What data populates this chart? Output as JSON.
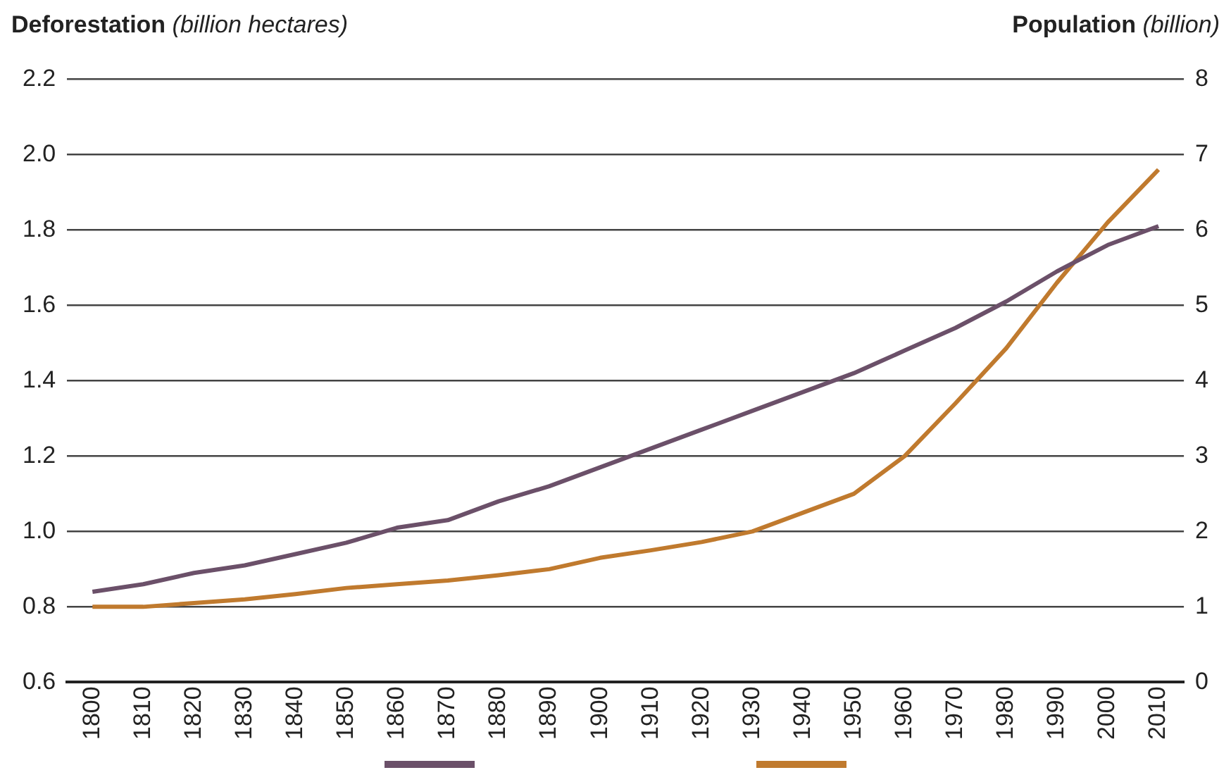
{
  "chart_data": {
    "type": "line",
    "ylabel": "Deforestation (billion hectares)",
    "y2label": "Population (billion)",
    "categories": [
      "1800",
      "1810",
      "1820",
      "1830",
      "1840",
      "1850",
      "1860",
      "1870",
      "1880",
      "1890",
      "1900",
      "1910",
      "1920",
      "1930",
      "1940",
      "1950",
      "1960",
      "1970",
      "1980",
      "1990",
      "2000",
      "2010"
    ],
    "series": [
      {
        "color": "#6b5069",
        "values": [
          0.84,
          0.86,
          0.89,
          0.91,
          0.94,
          0.97,
          1.01,
          1.03,
          1.08,
          1.12,
          1.17,
          1.22,
          1.27,
          1.32,
          1.37,
          1.42,
          1.48,
          1.54,
          1.61,
          1.69,
          1.76,
          1.81
        ]
      },
      {
        "color": "#c07a2e",
        "axis": "y2",
        "values": [
          1.0,
          1.0,
          1.05,
          1.1,
          1.17,
          1.25,
          1.3,
          1.35,
          1.42,
          1.5,
          1.65,
          1.75,
          1.86,
          2.0,
          2.25,
          2.5,
          3.0,
          3.7,
          4.43,
          5.3,
          6.1,
          6.8
        ]
      }
    ],
    "ylim": [
      0.6,
      2.2
    ],
    "yticks": [
      0.6,
      0.8,
      {
        "value": 1,
        "label": "1.0"
      },
      1.2,
      1.4,
      1.6,
      1.8,
      {
        "value": 2,
        "label": "2.0"
      },
      2.2
    ],
    "y2lim": [
      0,
      8
    ],
    "y2ticks": [
      0,
      1,
      2,
      3,
      4,
      5,
      6,
      7,
      8
    ],
    "grid": "y",
    "marker": "none",
    "line_style": "solid"
  }
}
